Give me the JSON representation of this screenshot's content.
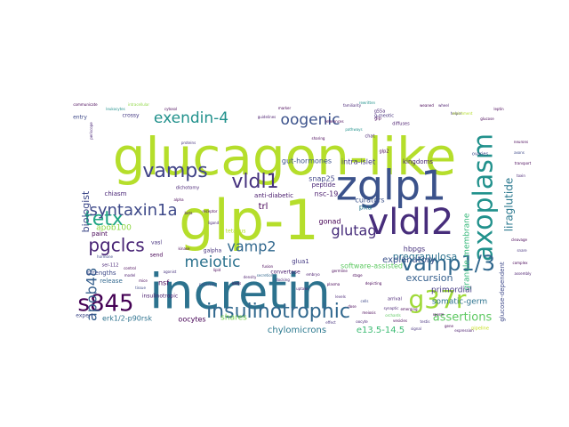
{
  "words": [
    {
      "text": "glucagon-like",
      "size": 58,
      "color": "#b5de2b"
    },
    {
      "text": "glp-1",
      "size": 62,
      "color": "#b5de2b"
    },
    {
      "text": "incretin",
      "size": 54,
      "color": "#2c728e"
    },
    {
      "text": "zglp1",
      "size": 46,
      "color": "#3b528b"
    },
    {
      "text": "vldl2",
      "size": 40,
      "color": "#472d7b"
    },
    {
      "text": "axoplasm",
      "size": 30,
      "color": "#21918c"
    },
    {
      "text": "vamp1/3",
      "size": 24,
      "color": "#31688e"
    },
    {
      "text": "g37r",
      "size": 28,
      "color": "#a0da39"
    },
    {
      "text": "s845",
      "size": 26,
      "color": "#440154"
    },
    {
      "text": "insulinotrophic",
      "size": 22,
      "color": "#31688e"
    },
    {
      "text": "vamps",
      "size": 22,
      "color": "#414487"
    },
    {
      "text": "vldl1",
      "size": 22,
      "color": "#46327e"
    },
    {
      "text": "tetx",
      "size": 22,
      "color": "#21a685"
    },
    {
      "text": "pgclcs",
      "size": 20,
      "color": "#482475"
    },
    {
      "text": "syntaxin1a",
      "size": 18,
      "color": "#3e4989"
    },
    {
      "text": "exendin-4",
      "size": 17,
      "color": "#21918c"
    },
    {
      "text": "oogenic",
      "size": 17,
      "color": "#3b528b"
    },
    {
      "text": "meiotic",
      "size": 17,
      "color": "#2c728e"
    },
    {
      "text": "glutag",
      "size": 16,
      "color": "#472d7b"
    },
    {
      "text": "vamp2",
      "size": 16,
      "color": "#31688e"
    },
    {
      "text": "apob48",
      "size": 16,
      "color": "#355f8d"
    },
    {
      "text": "liraglutide",
      "size": 12,
      "color": "#2a788e"
    },
    {
      "text": "assertions",
      "size": 13,
      "color": "#5ec962"
    },
    {
      "text": "biologist",
      "size": 11,
      "color": "#3e4989"
    },
    {
      "text": "pregranulosa",
      "size": 11,
      "color": "#2c728e"
    },
    {
      "text": "excursion",
      "size": 11,
      "color": "#355f8d"
    },
    {
      "text": "explanatory",
      "size": 10,
      "color": "#3b528b"
    },
    {
      "text": "chylomicrons",
      "size": 10,
      "color": "#2a788e"
    },
    {
      "text": "e13.5-14.5",
      "size": 10,
      "color": "#3dbc74"
    },
    {
      "text": "granule-membrane",
      "size": 9,
      "color": "#35b779"
    },
    {
      "text": "primordial",
      "size": 9,
      "color": "#443983"
    },
    {
      "text": "somatic-germ",
      "size": 9,
      "color": "#2c728e"
    },
    {
      "text": "glucose-dependent",
      "size": 7,
      "color": "#3e4989"
    },
    {
      "text": "apob100",
      "size": 9,
      "color": "#8fd744"
    },
    {
      "text": "trl",
      "size": 10,
      "color": "#440154"
    },
    {
      "text": "snap25",
      "size": 8,
      "color": "#404688"
    },
    {
      "text": "gut-hormones",
      "size": 8,
      "color": "#3b528b"
    },
    {
      "text": "intra-islet",
      "size": 8,
      "color": "#443983"
    },
    {
      "text": "nsc-19",
      "size": 8,
      "color": "#481a6c"
    },
    {
      "text": "gonad",
      "size": 8,
      "color": "#440154"
    },
    {
      "text": "pka",
      "size": 8,
      "color": "#2a788e"
    },
    {
      "text": "curators",
      "size": 8,
      "color": "#3b528b"
    },
    {
      "text": "anti-diabetic",
      "size": 7,
      "color": "#481a6c"
    },
    {
      "text": "software-assisted",
      "size": 8,
      "color": "#5ec962"
    },
    {
      "text": "hbpgs",
      "size": 8,
      "color": "#46327e"
    },
    {
      "text": "glua1",
      "size": 7,
      "color": "#443983"
    },
    {
      "text": "kingdoms",
      "size": 7,
      "color": "#482475"
    },
    {
      "text": "peptide",
      "size": 7,
      "color": "#482475"
    },
    {
      "text": "chiasm",
      "size": 7,
      "color": "#482475"
    },
    {
      "text": "paint",
      "size": 7,
      "color": "#440154"
    },
    {
      "text": "shares",
      "size": 9,
      "color": "#7ad151"
    },
    {
      "text": "oocytes",
      "size": 8,
      "color": "#440154"
    },
    {
      "text": "erk1/2-p90rsk",
      "size": 8,
      "color": "#2c728e"
    },
    {
      "text": "nsf",
      "size": 8,
      "color": "#440154"
    },
    {
      "text": "strengths",
      "size": 7,
      "color": "#3e4989"
    },
    {
      "text": "release",
      "size": 7,
      "color": "#31688e"
    },
    {
      "text": "insulinotropic",
      "size": 6,
      "color": "#481a6c"
    },
    {
      "text": "galpha",
      "size": 6,
      "color": "#46327e"
    },
    {
      "text": "expert",
      "size": 6,
      "color": "#3e4989"
    },
    {
      "text": "convertase",
      "size": 6,
      "color": "#481a6c"
    },
    {
      "text": "entry",
      "size": 6,
      "color": "#3e4989"
    },
    {
      "text": "crossy",
      "size": 6,
      "color": "#443983"
    },
    {
      "text": "vasl",
      "size": 6,
      "color": "#46327e"
    },
    {
      "text": "send",
      "size": 6,
      "color": "#440154"
    },
    {
      "text": "ser-112",
      "size": 5,
      "color": "#482475"
    },
    {
      "text": "dichotomy",
      "size": 5,
      "color": "#482475"
    },
    {
      "text": "tetanus",
      "size": 6,
      "color": "#b5de2b"
    },
    {
      "text": "arrival",
      "size": 5,
      "color": "#482475"
    },
    {
      "text": "gip",
      "size": 5,
      "color": "#440154"
    },
    {
      "text": "ovaries",
      "size": 5,
      "color": "#3e4989"
    },
    {
      "text": "chat",
      "size": 5,
      "color": "#482475"
    },
    {
      "text": "g-meotic",
      "size": 5,
      "color": "#46327e"
    },
    {
      "text": "diffuses",
      "size": 5,
      "color": "#481a6c"
    },
    {
      "text": "glp2",
      "size": 5,
      "color": "#440154"
    },
    {
      "text": "pipeline",
      "size": 5,
      "color": "#c8e020"
    },
    {
      "text": "g55a",
      "size": 5,
      "color": "#482475"
    },
    {
      "text": "wheel",
      "size": 4,
      "color": "#481a6c"
    },
    {
      "text": "periscope",
      "size": 4,
      "color": "#482475"
    },
    {
      "text": "communicate",
      "size": 4,
      "color": "#440154"
    },
    {
      "text": "familiarity",
      "size": 4,
      "color": "#482475"
    },
    {
      "text": "leukocytes",
      "size": 4,
      "color": "#21918c"
    },
    {
      "text": "weaned",
      "size": 4,
      "color": "#440154"
    },
    {
      "text": "orchards",
      "size": 4,
      "color": "#5ec962"
    },
    {
      "text": "sharing",
      "size": 4,
      "color": "#440154"
    },
    {
      "text": "pathways",
      "size": 4,
      "color": "#21918c"
    },
    {
      "text": "guidelines",
      "size": 4,
      "color": "#481a6c"
    },
    {
      "text": "intracellular",
      "size": 4,
      "color": "#8fd744"
    },
    {
      "text": "references",
      "size": 4,
      "color": "#440154"
    },
    {
      "text": "proteins",
      "size": 4,
      "color": "#46327e"
    },
    {
      "text": "depicting",
      "size": 4,
      "color": "#440154"
    },
    {
      "text": "rewritten",
      "size": 4,
      "color": "#21918c"
    },
    {
      "text": "cytosol",
      "size": 4,
      "color": "#440154"
    },
    {
      "text": "helper",
      "size": 4,
      "color": "#46327e"
    },
    {
      "text": "leptin",
      "size": 4,
      "color": "#440154"
    },
    {
      "text": "hormone",
      "size": 4,
      "color": "#3e4989"
    },
    {
      "text": "marker",
      "size": 4,
      "color": "#440154"
    },
    {
      "text": "density",
      "size": 4,
      "color": "#481a6c"
    },
    {
      "text": "enrichment",
      "size": 4,
      "color": "#b5de2b"
    },
    {
      "text": "glucose",
      "size": 4,
      "color": "#440154"
    },
    {
      "text": "synaptic",
      "size": 4,
      "color": "#482475"
    },
    {
      "text": "emerging",
      "size": 4,
      "color": "#440154"
    },
    {
      "text": "signal",
      "size": 4,
      "color": "#46327e"
    },
    {
      "text": "vesicles",
      "size": 4,
      "color": "#440154"
    },
    {
      "text": "docking",
      "size": 4,
      "color": "#482475"
    },
    {
      "text": "fusion",
      "size": 4,
      "color": "#440154"
    },
    {
      "text": "secretion",
      "size": 4,
      "color": "#31688e"
    },
    {
      "text": "islets",
      "size": 4,
      "color": "#440154"
    },
    {
      "text": "pancreas",
      "size": 4,
      "color": "#3e4989"
    },
    {
      "text": "alpha",
      "size": 4,
      "color": "#440154"
    },
    {
      "text": "beta",
      "size": 4,
      "color": "#481a6c"
    },
    {
      "text": "receptor",
      "size": 4,
      "color": "#440154"
    },
    {
      "text": "ligand",
      "size": 4,
      "color": "#482475"
    },
    {
      "text": "kinase",
      "size": 4,
      "color": "#440154"
    },
    {
      "text": "agonist",
      "size": 4,
      "color": "#46327e"
    },
    {
      "text": "control",
      "size": 4,
      "color": "#440154"
    },
    {
      "text": "model",
      "size": 4,
      "color": "#481a6c"
    },
    {
      "text": "mice",
      "size": 4,
      "color": "#440154"
    },
    {
      "text": "tissue",
      "size": 4,
      "color": "#3e4989"
    },
    {
      "text": "lipid",
      "size": 4,
      "color": "#440154"
    },
    {
      "text": "uptake",
      "size": 4,
      "color": "#481a6c"
    },
    {
      "text": "plasma",
      "size": 4,
      "color": "#440154"
    },
    {
      "text": "levels",
      "size": 4,
      "color": "#482475"
    },
    {
      "text": "dose",
      "size": 4,
      "color": "#440154"
    },
    {
      "text": "effect",
      "size": 4,
      "color": "#46327e"
    },
    {
      "text": "germline",
      "size": 4,
      "color": "#440154"
    },
    {
      "text": "embryo",
      "size": 4,
      "color": "#481a6c"
    },
    {
      "text": "stage",
      "size": 4,
      "color": "#440154"
    },
    {
      "text": "cells",
      "size": 4,
      "color": "#3e4989"
    },
    {
      "text": "meiosis",
      "size": 4,
      "color": "#440154"
    },
    {
      "text": "oocyte",
      "size": 4,
      "color": "#482475"
    },
    {
      "text": "sperm",
      "size": 4,
      "color": "#440154"
    },
    {
      "text": "testis",
      "size": 4,
      "color": "#46327e"
    },
    {
      "text": "gene",
      "size": 4,
      "color": "#440154"
    },
    {
      "text": "expression",
      "size": 4,
      "color": "#481a6c"
    },
    {
      "text": "neurons",
      "size": 4,
      "color": "#440154"
    },
    {
      "text": "axons",
      "size": 4,
      "color": "#3e4989"
    },
    {
      "text": "transport",
      "size": 4,
      "color": "#440154"
    },
    {
      "text": "toxin",
      "size": 4,
      "color": "#482475"
    },
    {
      "text": "cleavage",
      "size": 4,
      "color": "#440154"
    },
    {
      "text": "snare",
      "size": 4,
      "color": "#46327e"
    },
    {
      "text": "complex",
      "size": 4,
      "color": "#440154"
    },
    {
      "text": "assembly",
      "size": 4,
      "color": "#481a6c"
    }
  ]
}
